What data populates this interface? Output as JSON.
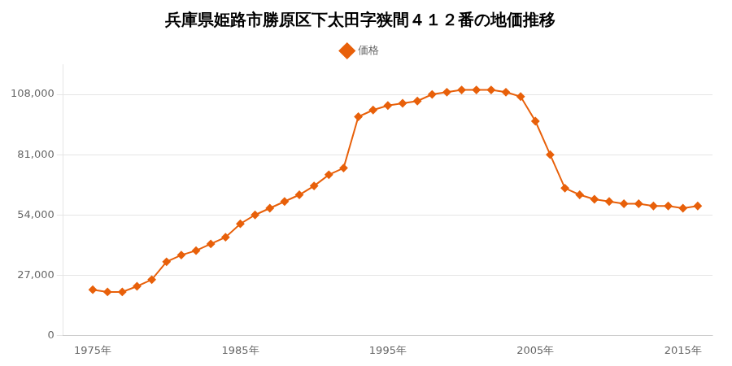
{
  "chart_data": {
    "type": "line",
    "title": "兵庫県姫路市勝原区下太田字狭間４１２番の地価推移",
    "x": [
      1975,
      1976,
      1977,
      1978,
      1979,
      1980,
      1981,
      1982,
      1983,
      1984,
      1985,
      1986,
      1987,
      1988,
      1989,
      1990,
      1991,
      1992,
      1993,
      1994,
      1995,
      1996,
      1997,
      1998,
      1999,
      2000,
      2001,
      2002,
      2003,
      2004,
      2005,
      2006,
      2007,
      2008,
      2009,
      2010,
      2011,
      2012,
      2013,
      2014,
      2015,
      2016
    ],
    "series": [
      {
        "name": "価格",
        "color": "#E8600A",
        "marker": "diamond",
        "values": [
          20500,
          19500,
          19500,
          22000,
          25000,
          33000,
          36000,
          38000,
          41000,
          44000,
          50000,
          54000,
          57000,
          60000,
          63000,
          67000,
          72000,
          75000,
          98000,
          101000,
          103000,
          104000,
          105000,
          108000,
          109000,
          110000,
          110000,
          110000,
          109000,
          107000,
          96000,
          81000,
          66000,
          63000,
          61000,
          60000,
          59000,
          59000,
          58000,
          58000,
          57000,
          58000
        ]
      }
    ],
    "xlim": [
      1973,
      2017
    ],
    "xticks": [
      {
        "value": 1975,
        "label": "1975年"
      },
      {
        "value": 1985,
        "label": "1985年"
      },
      {
        "value": 1995,
        "label": "1995年"
      },
      {
        "value": 2005,
        "label": "2005年"
      },
      {
        "value": 2015,
        "label": "2015年"
      }
    ],
    "ylim": [
      0,
      121500
    ],
    "yticks": [
      0,
      {
        "value": 27000,
        "label": "27,000"
      },
      {
        "value": 54000,
        "label": "54,000"
      },
      {
        "value": 81000,
        "label": "81,000"
      },
      {
        "value": 108000,
        "label": "108,000"
      }
    ],
    "grid": "y",
    "legend": "top"
  }
}
